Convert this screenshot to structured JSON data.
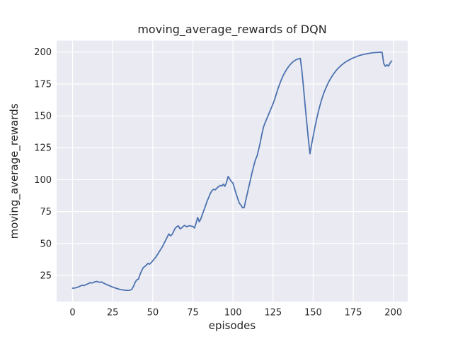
{
  "style": {
    "figure_bg": "#ffffff",
    "axes_bg": "#eaeaf2",
    "grid_color": "#ffffff",
    "text_color": "#262626",
    "line_color": "#4c72b0",
    "line_width": 1.8
  },
  "chart_data": {
    "type": "line",
    "title": "moving_average_rewards of DQN",
    "xlabel": "episodes",
    "ylabel": "moving_average_rewards",
    "x_ticks": [
      0,
      25,
      50,
      75,
      100,
      125,
      150,
      175,
      200
    ],
    "y_ticks": [
      25,
      50,
      75,
      100,
      125,
      150,
      175,
      200
    ],
    "xlim": [
      -9.95,
      208.95
    ],
    "ylim": [
      4.4,
      208.9
    ],
    "grid": true,
    "legend": false,
    "x_is_index": true,
    "series": [
      {
        "name": "moving_average_rewards",
        "color": "#4c72b0",
        "y": [
          15.0,
          15.1,
          15.3,
          15.7,
          16.2,
          16.8,
          17.3,
          17.0,
          17.6,
          18.1,
          18.7,
          19.3,
          19.0,
          19.5,
          20.0,
          20.3,
          19.9,
          19.6,
          19.9,
          19.2,
          18.6,
          18.0,
          17.5,
          16.9,
          16.4,
          15.9,
          15.4,
          15.0,
          14.6,
          14.2,
          13.9,
          13.7,
          13.5,
          13.4,
          13.3,
          13.3,
          13.5,
          14.2,
          16.5,
          19.5,
          21.5,
          22.0,
          25.5,
          28.5,
          31.0,
          32.0,
          33.0,
          34.5,
          33.8,
          35.0,
          36.5,
          38.0,
          39.5,
          41.5,
          43.5,
          45.5,
          47.5,
          50.0,
          52.5,
          55.0,
          57.5,
          56.0,
          57.0,
          59.5,
          62.0,
          63.2,
          63.8,
          61.5,
          62.2,
          63.5,
          64.2,
          63.1,
          63.6,
          64.0,
          63.6,
          63.4,
          62.1,
          66.0,
          70.4,
          67.0,
          69.5,
          73.0,
          76.5,
          80.0,
          83.5,
          86.5,
          89.5,
          91.5,
          92.5,
          92.0,
          93.5,
          94.5,
          95.5,
          95.0,
          96.5,
          94.8,
          98.0,
          102.5,
          100.5,
          98.5,
          97.3,
          93.0,
          89.0,
          85.0,
          81.5,
          80.0,
          78.0,
          78.2,
          84.0,
          89.5,
          95.0,
          100.5,
          106.0,
          111.0,
          115.5,
          118.5,
          123.5,
          129.0,
          135.5,
          141.0,
          144.5,
          147.5,
          150.5,
          153.5,
          156.5,
          159.5,
          163.0,
          167.0,
          171.0,
          174.5,
          177.8,
          180.8,
          183.3,
          185.5,
          187.4,
          189.1,
          190.6,
          191.9,
          192.9,
          193.7,
          194.3,
          194.7,
          195.0,
          185.0,
          172.0,
          158.0,
          145.0,
          132.0,
          120.3,
          127.5,
          134.0,
          140.5,
          146.5,
          152.0,
          157.0,
          161.5,
          165.5,
          169.0,
          172.0,
          174.8,
          177.3,
          179.5,
          181.5,
          183.3,
          185.0,
          186.5,
          187.8,
          189.0,
          190.1,
          191.1,
          192.0,
          192.8,
          193.5,
          194.2,
          194.8,
          195.4,
          195.9,
          196.4,
          196.9,
          197.3,
          197.7,
          198.0,
          198.3,
          198.6,
          198.8,
          199.0,
          199.2,
          199.4,
          199.5,
          199.6,
          199.7,
          199.8,
          199.8,
          199.8,
          191.0,
          188.8,
          190.0,
          189.0,
          191.5,
          193.0
        ]
      }
    ]
  }
}
